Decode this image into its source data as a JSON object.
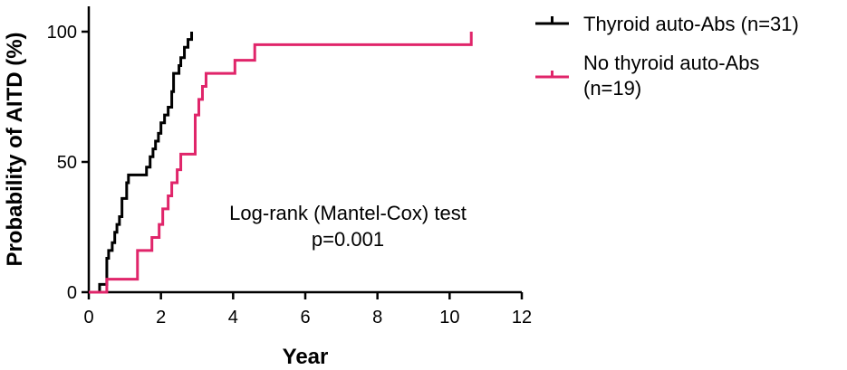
{
  "chart_data": {
    "type": "line",
    "step": true,
    "xlabel": "Year",
    "ylabel": "Probability of AITD (%)",
    "xlim": [
      0,
      12
    ],
    "ylim": [
      0,
      100
    ],
    "x_ticks": [
      0,
      2,
      4,
      6,
      8,
      10,
      12
    ],
    "y_ticks": [
      0,
      50,
      100
    ],
    "grid": false,
    "legend_position": "top-right outside",
    "annotation": [
      "Log-rank (Mantel-Cox) test",
      "p=0.001"
    ],
    "series": [
      {
        "name": "Thyroid auto-Abs (n=31)",
        "color": "#000000",
        "points": [
          [
            0,
            0
          ],
          [
            0.3,
            3
          ],
          [
            0.5,
            13
          ],
          [
            0.55,
            16
          ],
          [
            0.65,
            19
          ],
          [
            0.72,
            23
          ],
          [
            0.78,
            26
          ],
          [
            0.85,
            29
          ],
          [
            0.92,
            36
          ],
          [
            1.05,
            42
          ],
          [
            1.1,
            45
          ],
          [
            1.6,
            48
          ],
          [
            1.7,
            52
          ],
          [
            1.78,
            55
          ],
          [
            1.85,
            58
          ],
          [
            1.93,
            61
          ],
          [
            2.0,
            65
          ],
          [
            2.1,
            68
          ],
          [
            2.2,
            71
          ],
          [
            2.3,
            77
          ],
          [
            2.35,
            84
          ],
          [
            2.5,
            87
          ],
          [
            2.55,
            90
          ],
          [
            2.65,
            94
          ],
          [
            2.75,
            97
          ],
          [
            2.85,
            100
          ]
        ]
      },
      {
        "name": "No thyroid auto-Abs (n=19)",
        "color": "#e0256a",
        "points": [
          [
            0,
            0
          ],
          [
            0.5,
            5
          ],
          [
            1.35,
            16
          ],
          [
            1.75,
            21
          ],
          [
            1.95,
            26
          ],
          [
            2.05,
            32
          ],
          [
            2.2,
            37
          ],
          [
            2.3,
            42
          ],
          [
            2.45,
            47
          ],
          [
            2.55,
            53
          ],
          [
            2.95,
            68
          ],
          [
            3.05,
            74
          ],
          [
            3.15,
            79
          ],
          [
            3.25,
            84
          ],
          [
            4.05,
            89
          ],
          [
            4.6,
            95
          ],
          [
            10.6,
            95
          ],
          [
            10.6,
            100
          ]
        ]
      }
    ]
  }
}
